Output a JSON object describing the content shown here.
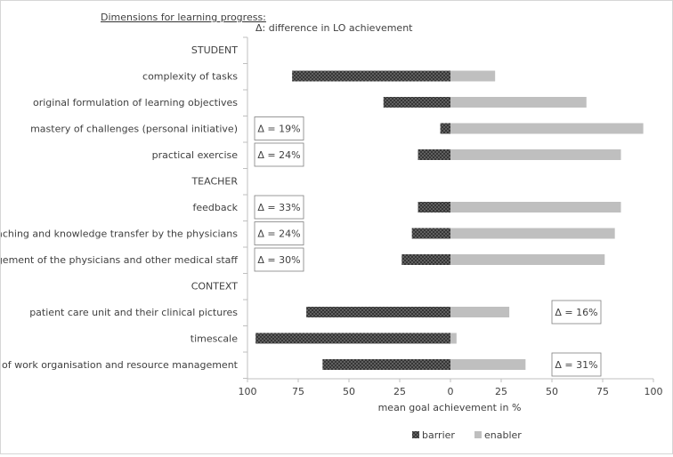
{
  "chart_data": {
    "type": "bar",
    "orientation": "horizontal-diverging",
    "header": "Dimensions for learning progress:",
    "subtitle": "Δ: difference in LO achievement",
    "xlabel": "mean goal achievement in %",
    "xlim": [
      -100,
      100
    ],
    "x_ticks": [
      "100",
      "75",
      "50",
      "25",
      "0",
      "25",
      "50",
      "75",
      "100"
    ],
    "grid": false,
    "legend_position": "bottom",
    "series": [
      {
        "name": "barrier",
        "color": "#2b2b2b",
        "pattern": "crosshatch"
      },
      {
        "name": "enabler",
        "color": "#bfbfbf"
      }
    ],
    "rows": [
      {
        "label": "STUDENT",
        "section": true
      },
      {
        "label": "complexity of tasks",
        "barrier": 78,
        "enabler": 22
      },
      {
        "label": "original formulation of learning objectives",
        "barrier": 33,
        "enabler": 67
      },
      {
        "label": "mastery of challenges (personal initiative)",
        "barrier": 5,
        "enabler": 95,
        "delta": "Δ = 19%",
        "delta_side": "left"
      },
      {
        "label": "practical exercise",
        "barrier": 16,
        "enabler": 84,
        "delta": "Δ = 24%",
        "delta_side": "left"
      },
      {
        "label": "TEACHER",
        "section": true
      },
      {
        "label": "feedback",
        "barrier": 16,
        "enabler": 84,
        "delta": "Δ = 33%",
        "delta_side": "left"
      },
      {
        "label": "teaching and knowledge transfer by the physicians",
        "barrier": 19,
        "enabler": 81,
        "delta": "Δ = 24%",
        "delta_side": "left"
      },
      {
        "label": "engagement of the physicians and other medical staff",
        "barrier": 24,
        "enabler": 76,
        "delta": "Δ = 30%",
        "delta_side": "left"
      },
      {
        "label": "CONTEXT",
        "section": true
      },
      {
        "label": "patient care unit and their clinical pictures",
        "barrier": 71,
        "enabler": 29,
        "delta": "Δ = 16%",
        "delta_side": "right"
      },
      {
        "label": "timescale",
        "barrier": 96,
        "enabler": 3
      },
      {
        "label": "mode of work organisation and resource management",
        "barrier": 63,
        "enabler": 37,
        "delta": "Δ = 31%",
        "delta_side": "right"
      }
    ]
  }
}
